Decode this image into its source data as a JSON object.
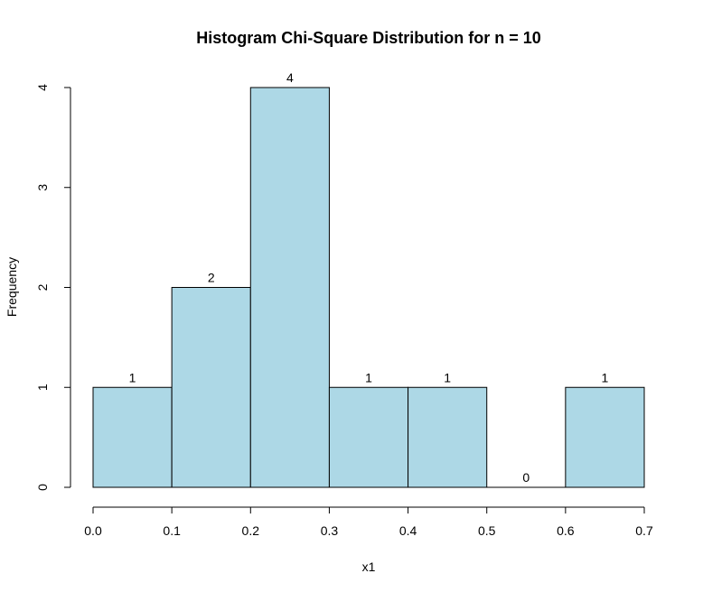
{
  "chart_data": {
    "type": "bar",
    "title": "Histogram Chi-Square Distribution for n = 10",
    "xlabel": "x1",
    "ylabel": "Frequency",
    "bins": [
      {
        "from": 0.0,
        "to": 0.1,
        "count": 1
      },
      {
        "from": 0.1,
        "to": 0.2,
        "count": 2
      },
      {
        "from": 0.2,
        "to": 0.3,
        "count": 4
      },
      {
        "from": 0.3,
        "to": 0.4,
        "count": 1
      },
      {
        "from": 0.4,
        "to": 0.5,
        "count": 1
      },
      {
        "from": 0.5,
        "to": 0.6,
        "count": 0
      },
      {
        "from": 0.6,
        "to": 0.7,
        "count": 1
      }
    ],
    "count_labels": [
      "1",
      "2",
      "4",
      "1",
      "1",
      "0",
      "1"
    ],
    "xlim": [
      0.0,
      0.7
    ],
    "ylim": [
      0,
      4
    ],
    "x_ticks": [
      "0.0",
      "0.1",
      "0.2",
      "0.3",
      "0.4",
      "0.5",
      "0.6",
      "0.7"
    ],
    "y_ticks": [
      "0",
      "1",
      "2",
      "3",
      "4"
    ],
    "grid": false,
    "bar_fill": "#add8e6",
    "bar_stroke": "#000000"
  }
}
